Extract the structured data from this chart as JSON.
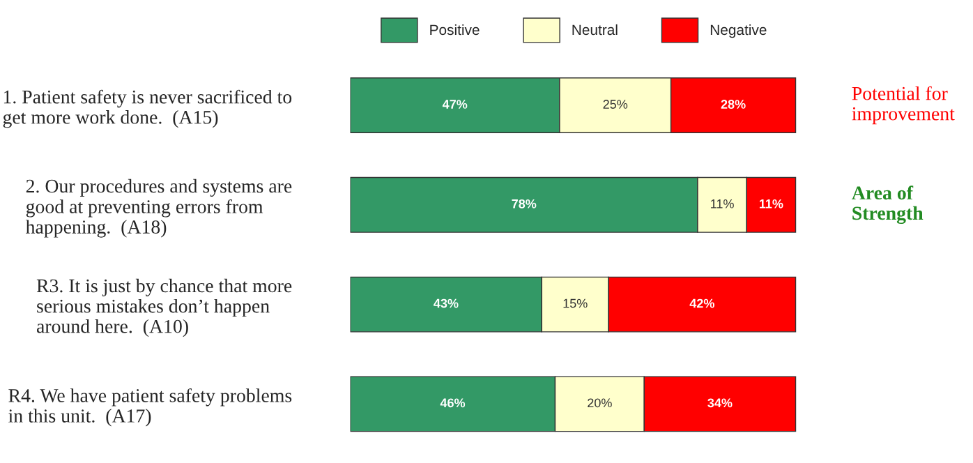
{
  "chart_data": {
    "type": "bar",
    "orientation": "horizontal",
    "stacked": true,
    "legend": "top",
    "tick_labels": "y",
    "grid": false,
    "categories": [
      "1. Patient safety is never sacrificed to get more work done.  (A15)",
      "2. Our procedures and systems are good at preventing errors from happening.  (A18)",
      "R3. It is just by chance that more serious mistakes don’t happen around here.  (A10)",
      "R4. We have patient safety problems in this unit.  (A17)"
    ],
    "series": [
      {
        "name": "Positive",
        "color": "#339966",
        "values": [
          47,
          78,
          43,
          46
        ],
        "value_labels": [
          "47%",
          "78%",
          "43%",
          "46%"
        ]
      },
      {
        "name": "Neutral",
        "color": "#ffffcc",
        "values": [
          25,
          11,
          15,
          20
        ],
        "value_labels": [
          "25%",
          "11%",
          "15%",
          "20%"
        ]
      },
      {
        "name": "Negative",
        "color": "#ff0000",
        "values": [
          28,
          11,
          42,
          34
        ],
        "value_labels": [
          "28%",
          "11%",
          "42%",
          "34%"
        ]
      }
    ],
    "annotations": [
      "Potential for improvement",
      "Area of Strength"
    ]
  }
}
